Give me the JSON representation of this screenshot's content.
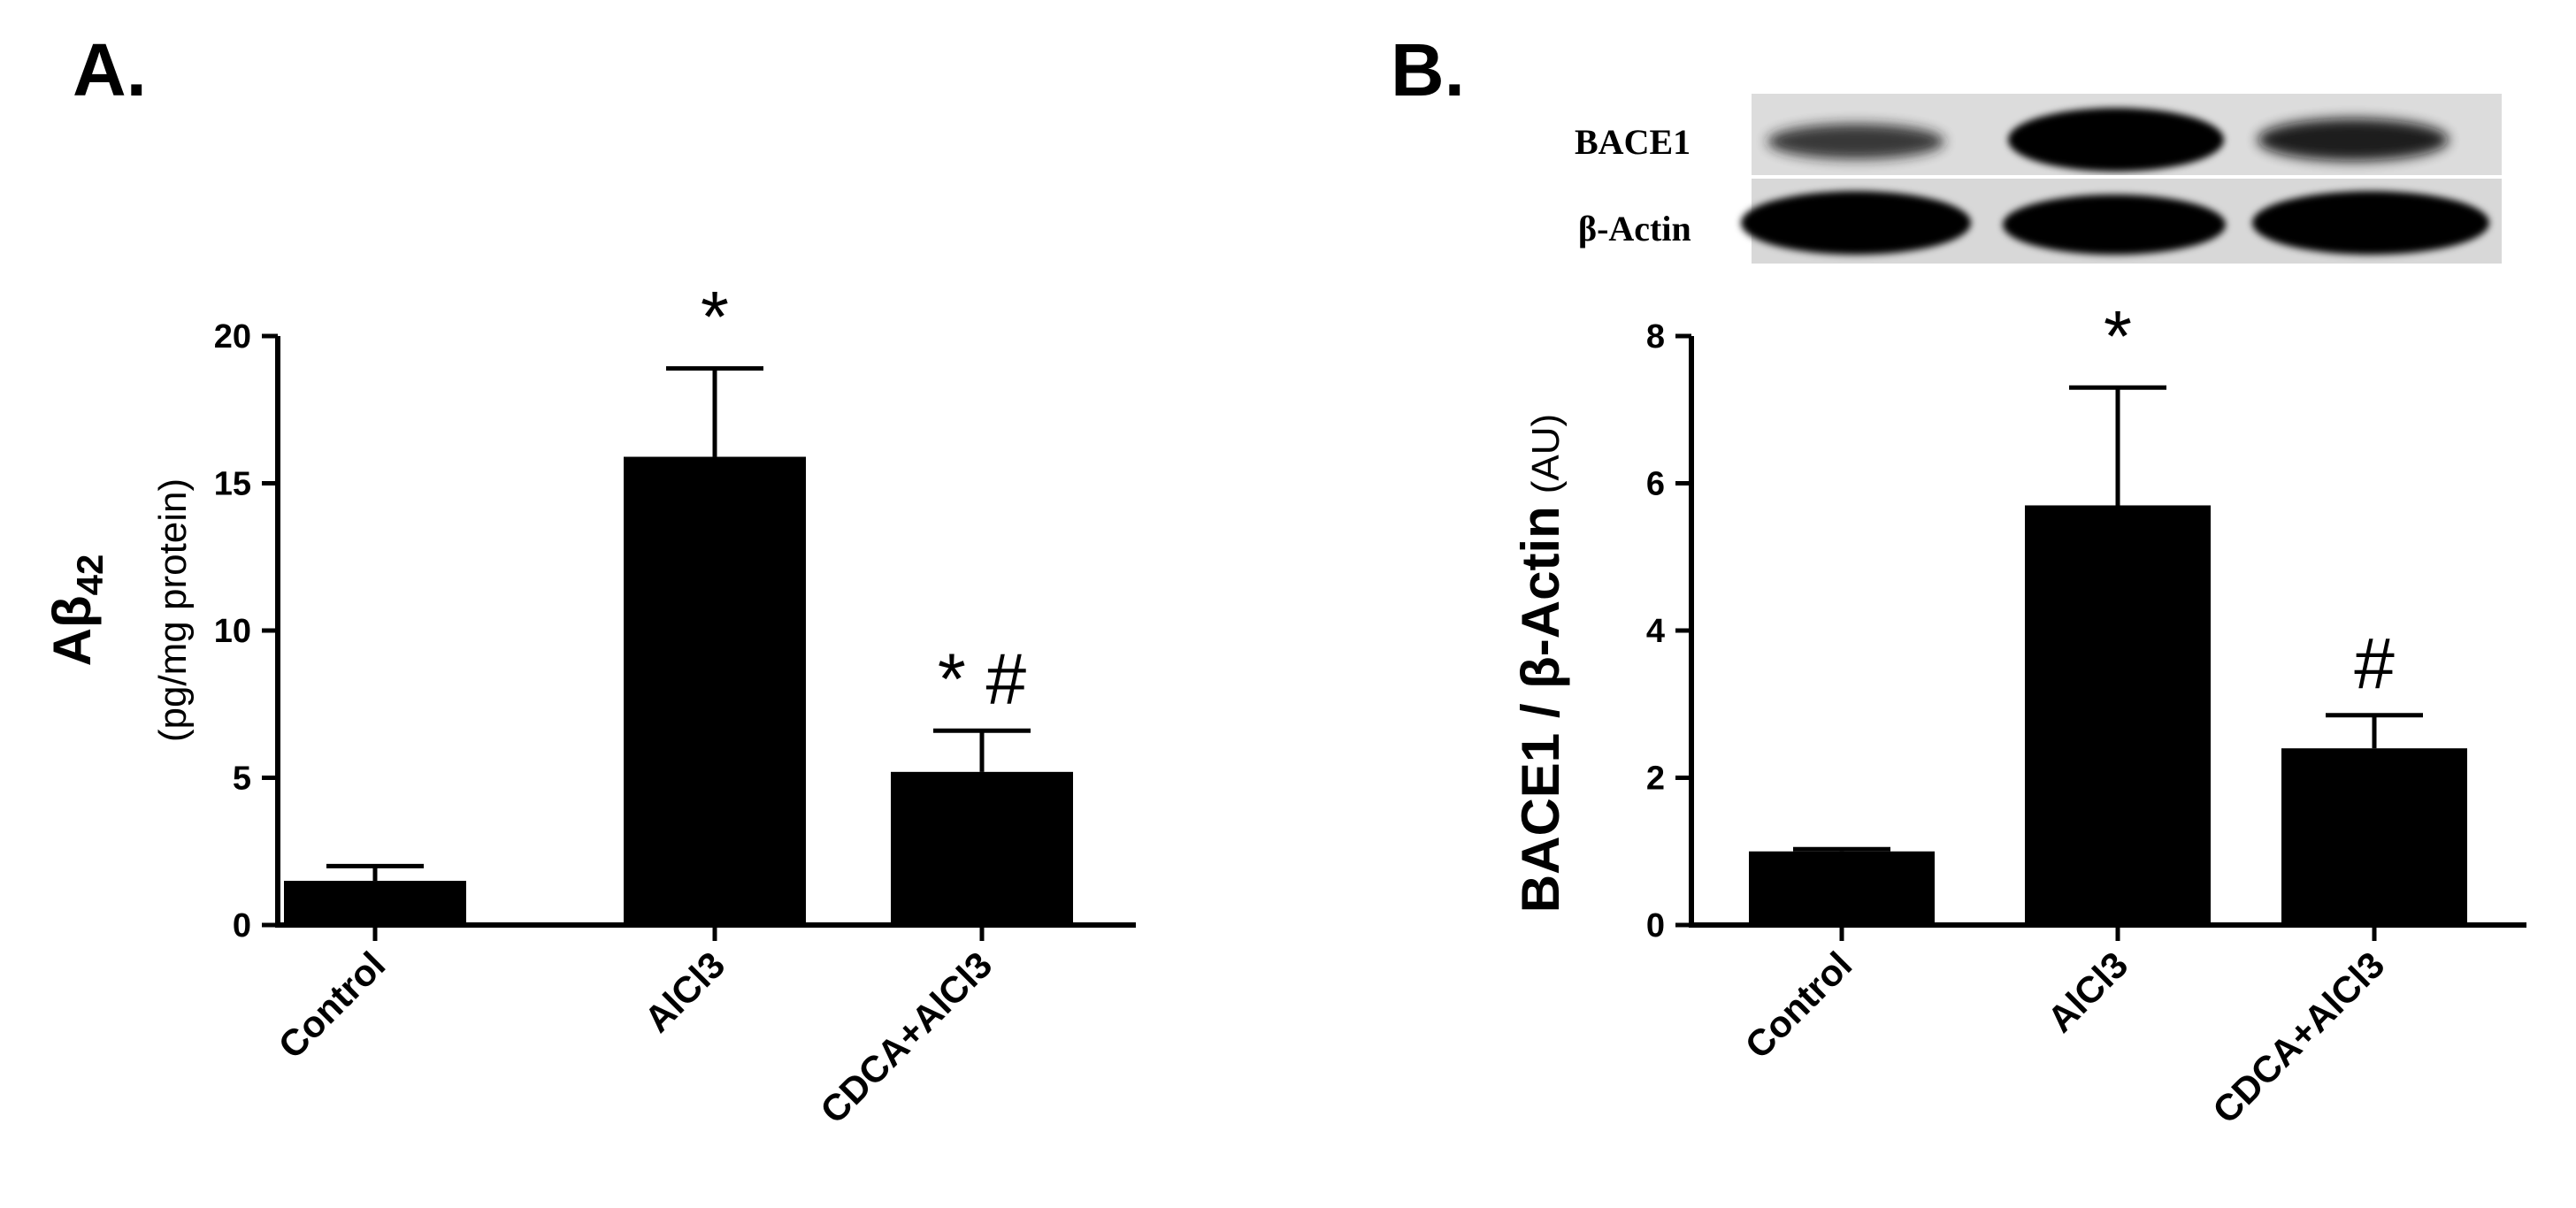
{
  "panels": [
    {
      "letter": "A.",
      "ylabel_main": "Aβ",
      "ylabel_sub": "42",
      "ylabel_units": "(pg/mg protein)"
    },
    {
      "letter": "B.",
      "ylabel": "BACE1 / β-Actin",
      "ylabel_units": "(AU)",
      "blot": {
        "rows": [
          "BACE1",
          "β-Actin"
        ]
      }
    }
  ],
  "chart_data": [
    {
      "type": "bar",
      "categories": [
        "Control",
        "AlCl3",
        "CDCA+AlCl3"
      ],
      "values": [
        1.5,
        15.9,
        5.2
      ],
      "errors": [
        0.5,
        3.0,
        1.4
      ],
      "annotations": [
        "",
        "*",
        "* #"
      ],
      "title": "",
      "xlabel": "",
      "ylabel": "Aβ42 (pg/mg protein)",
      "ylim": [
        0,
        20
      ],
      "yticks": [
        0,
        5,
        10,
        15,
        20
      ],
      "grid": false,
      "bar_color": "#000000"
    },
    {
      "type": "bar",
      "categories": [
        "Control",
        "AlCl3",
        "CDCA+AlCl3"
      ],
      "values": [
        1.0,
        5.7,
        2.4
      ],
      "errors": [
        0.03,
        1.6,
        0.45
      ],
      "annotations": [
        "",
        "*",
        "#"
      ],
      "title": "",
      "xlabel": "",
      "ylabel": "BACE1 / β-Actin (AU)",
      "ylim": [
        0,
        8
      ],
      "yticks": [
        0,
        2,
        4,
        6,
        8
      ],
      "grid": false,
      "bar_color": "#000000"
    }
  ]
}
